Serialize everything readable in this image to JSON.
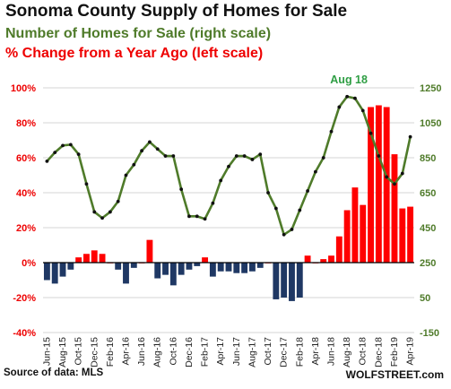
{
  "chart_data": {
    "type": "bar+line",
    "title": "Sonoma County Supply of Homes for Sale",
    "subtitles": [
      {
        "text": "Number of Homes for Sale (right scale)",
        "color": "#4f7b2a"
      },
      {
        "text": "% Change from a Year Ago (left scale)",
        "color": "#ee0000"
      }
    ],
    "x": [
      "Jun-15",
      "Jul-15",
      "Aug-15",
      "Sep-15",
      "Oct-15",
      "Nov-15",
      "Dec-15",
      "Jan-16",
      "Feb-16",
      "Mar-16",
      "Apr-16",
      "May-16",
      "Jun-16",
      "Jul-16",
      "Aug-16",
      "Sep-16",
      "Oct-16",
      "Nov-16",
      "Dec-16",
      "Jan-17",
      "Feb-17",
      "Mar-17",
      "Apr-17",
      "May-17",
      "Jun-17",
      "Jul-17",
      "Aug-17",
      "Sep-17",
      "Oct-17",
      "Nov-17",
      "Dec-17",
      "Jan-18",
      "Feb-18",
      "Mar-18",
      "Apr-18",
      "May-18",
      "Jun-18",
      "Jul-18",
      "Aug-18",
      "Sep-18",
      "Oct-18",
      "Nov-18",
      "Dec-18",
      "Jan-19",
      "Feb-19",
      "Mar-19",
      "Apr-19"
    ],
    "x_tick_labels": [
      "Jun-15",
      "Aug-15",
      "Oct-15",
      "Dec-15",
      "Feb-16",
      "Apr-16",
      "Jun-16",
      "Aug-16",
      "Oct-16",
      "Dec-16",
      "Feb-17",
      "Apr-17",
      "Jun-17",
      "Aug-17",
      "Oct-17",
      "Dec-17",
      "Feb-18",
      "Apr-18",
      "Jun-18",
      "Aug-18",
      "Oct-18",
      "Dec-18",
      "Feb-19",
      "Apr-19"
    ],
    "left_axis": {
      "ylim": [
        -40,
        100
      ],
      "ticks": [
        "-40%",
        "-20%",
        "0%",
        "20%",
        "40%",
        "60%",
        "80%",
        "100%"
      ],
      "color": "#ee0000"
    },
    "right_axis": {
      "ylim": [
        -150,
        1250
      ],
      "ticks": [
        "-150",
        "50",
        "250",
        "450",
        "650",
        "850",
        "1050",
        "1250"
      ],
      "color": "#4f7b2a"
    },
    "series": [
      {
        "kind": "bar",
        "axis": "left",
        "values": [
          -10,
          -12,
          -8,
          -4,
          3,
          5,
          7,
          5,
          0,
          -4,
          -12,
          -3,
          0,
          13,
          -9,
          -7,
          -13,
          -7,
          -4,
          -2,
          3,
          -8,
          -5,
          -5,
          -6,
          -6,
          -5,
          -3,
          0,
          -21,
          -20,
          -22,
          -20,
          4,
          0,
          2,
          4,
          15,
          30,
          43,
          33,
          89,
          90,
          89,
          62,
          31,
          32
        ],
        "positive_color": "#ff0000",
        "negative_color": "#1f3864"
      },
      {
        "kind": "line",
        "axis": "right",
        "values": [
          830,
          880,
          920,
          925,
          870,
          700,
          540,
          505,
          540,
          600,
          750,
          810,
          890,
          940,
          900,
          860,
          860,
          670,
          515,
          515,
          500,
          590,
          720,
          800,
          860,
          860,
          840,
          870,
          650,
          560,
          410,
          440,
          550,
          660,
          770,
          850,
          1000,
          1140,
          1200,
          1190,
          1120,
          990,
          860,
          740,
          700,
          760,
          970
        ],
        "color": "#4f7b2a",
        "marker_color": "#111111"
      }
    ],
    "annotations": [
      {
        "text": "Aug 18",
        "x": "Aug-18",
        "color": "#2f9e44"
      }
    ],
    "grid": "horizontal",
    "source": "Source of data: MLS",
    "brand": "WOLFSTREET.com"
  }
}
